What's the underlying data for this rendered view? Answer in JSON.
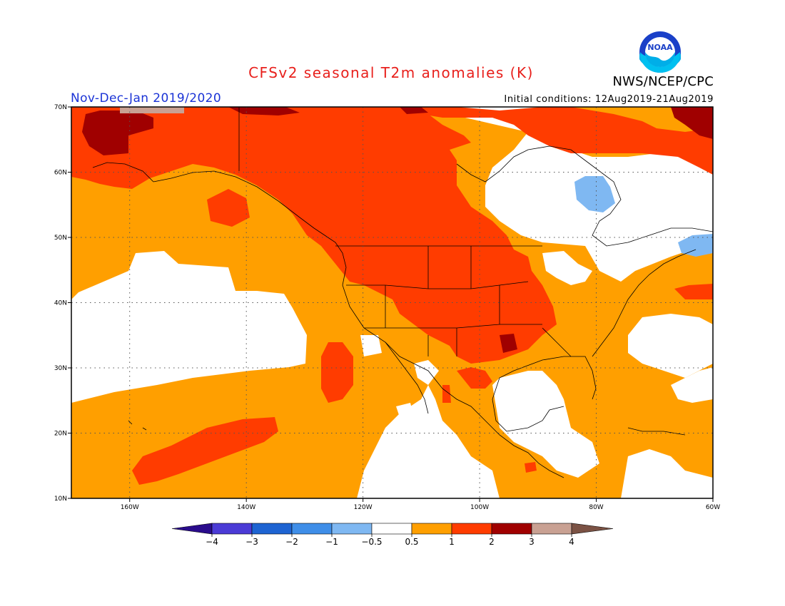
{
  "header": {
    "title": "CFSv2 seasonal T2m anomalies (K)",
    "season": "Nov-Dec-Jan 2019/2020",
    "initial_conditions": "Initial conditions: 12Aug2019-21Aug2019",
    "agency": "NWS/NCEP/CPC",
    "logo_text": "NOAA"
  },
  "map": {
    "lat_labels": [
      "70N",
      "60N",
      "50N",
      "40N",
      "30N",
      "20N",
      "10N"
    ],
    "lon_labels": [
      "160W",
      "140W",
      "120W",
      "100W",
      "80W",
      "60W"
    ],
    "lat_range": [
      10,
      70
    ],
    "lon_range": [
      -170,
      -60
    ],
    "projection": "equirectangular",
    "grid": "dotted"
  },
  "colorbar": {
    "labels": [
      "-4",
      "-3",
      "-2",
      "-1",
      "-0.5",
      "0.5",
      "1",
      "2",
      "3",
      "4"
    ],
    "colors": [
      "#2a0c8c",
      "#4b3bd6",
      "#1e64d2",
      "#3f8ee8",
      "#7fb8f2",
      "#ffffff",
      "#ff9f00",
      "#ff3c00",
      "#a00000",
      "#c9a193",
      "#7b5244"
    ]
  },
  "colors": {
    "title": "#e8201c",
    "season": "#1a33d6",
    "anomaly_05_1": "#ff9f00",
    "anomaly_1_2": "#ff3c00",
    "anomaly_2_3": "#a00000",
    "anomaly_3_4": "#c9a193",
    "anomaly_m1_m05": "#7fb8f2"
  }
}
